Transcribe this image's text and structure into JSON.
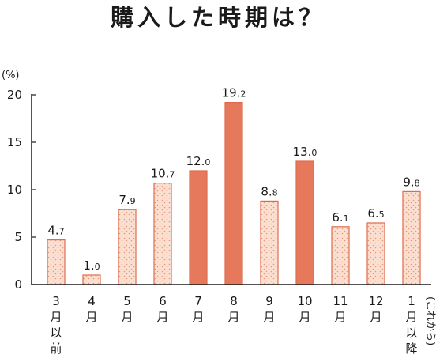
{
  "chart_data": {
    "type": "bar",
    "title": "購入した時期は？",
    "ylabel": "(%)",
    "xlabel": "",
    "ylim": [
      0,
      20
    ],
    "yticks": [
      "0",
      "5",
      "10",
      "15",
      "20"
    ],
    "categories": [
      "3月以前",
      "4月",
      "5月",
      "6月",
      "7月",
      "8月",
      "9月",
      "10月",
      "11月",
      "12月",
      "1月以降"
    ],
    "category_note": "(これから)",
    "values": [
      4.7,
      1.0,
      7.9,
      10.7,
      12.0,
      19.2,
      8.8,
      13.0,
      6.1,
      6.5,
      9.8
    ],
    "value_labels": [
      "4.7",
      "1.0",
      "7.9",
      "10.7",
      "12.0",
      "19.2",
      "8.8",
      "13.0",
      "6.1",
      "6.5",
      "9.8"
    ],
    "highlighted": [
      false,
      false,
      false,
      false,
      true,
      true,
      false,
      true,
      false,
      false,
      false
    ],
    "grid": false,
    "legend": "none"
  },
  "colors": {
    "highlight_fill": "#e6785c",
    "light_fill": "#fbe0d2",
    "bar_stroke": "#e06a4c",
    "dot": "#e8967a",
    "axis": "#1a1a1a",
    "rule": "#e58a6a"
  }
}
